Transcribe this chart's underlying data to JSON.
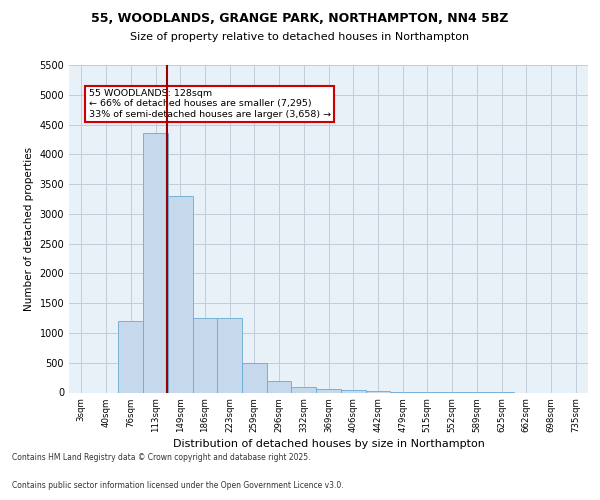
{
  "title_line1": "55, WOODLANDS, GRANGE PARK, NORTHAMPTON, NN4 5BZ",
  "title_line2": "Size of property relative to detached houses in Northampton",
  "xlabel": "Distribution of detached houses by size in Northampton",
  "ylabel": "Number of detached properties",
  "categories": [
    "3sqm",
    "40sqm",
    "76sqm",
    "113sqm",
    "149sqm",
    "186sqm",
    "223sqm",
    "259sqm",
    "296sqm",
    "332sqm",
    "369sqm",
    "406sqm",
    "442sqm",
    "479sqm",
    "515sqm",
    "552sqm",
    "589sqm",
    "625sqm",
    "662sqm",
    "698sqm",
    "735sqm"
  ],
  "values": [
    0,
    0,
    1200,
    4350,
    3300,
    1250,
    1250,
    500,
    200,
    100,
    60,
    40,
    20,
    8,
    4,
    2,
    1,
    1,
    0,
    0,
    0
  ],
  "bar_color": "#c5d8ec",
  "bar_edge_color": "#6aaad4",
  "vline_color": "#990000",
  "annotation_text": "55 WOODLANDS: 128sqm\n← 66% of detached houses are smaller (7,295)\n33% of semi-detached houses are larger (3,658) →",
  "annotation_box_color": "#cc0000",
  "ylim": [
    0,
    5500
  ],
  "yticks": [
    0,
    500,
    1000,
    1500,
    2000,
    2500,
    3000,
    3500,
    4000,
    4500,
    5000,
    5500
  ],
  "footnote1": "Contains HM Land Registry data © Crown copyright and database right 2025.",
  "footnote2": "Contains public sector information licensed under the Open Government Licence v3.0.",
  "bg_color": "#e8f0f8",
  "grid_color": "#c0ccd8"
}
